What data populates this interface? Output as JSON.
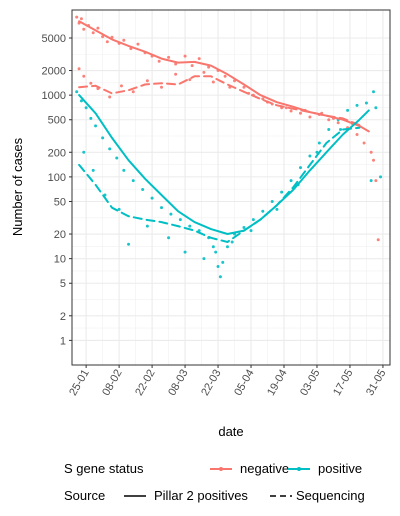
{
  "chart_data": {
    "type": "scatter",
    "xlabel": "date",
    "ylabel": "Number of cases",
    "y_scale": "log",
    "ylim": [
      0.5,
      11000
    ],
    "xlim": [
      "2021-01-19",
      "2021-06-03"
    ],
    "grid": true,
    "legend_position": "bottom",
    "x_ticks": [
      {
        "date": "2021-01-25",
        "label": "25-01"
      },
      {
        "date": "2021-02-08",
        "label": "08-02"
      },
      {
        "date": "2021-02-22",
        "label": "22-02"
      },
      {
        "date": "2021-03-08",
        "label": "08-03"
      },
      {
        "date": "2021-03-22",
        "label": "22-03"
      },
      {
        "date": "2021-04-05",
        "label": "05-04"
      },
      {
        "date": "2021-04-19",
        "label": "19-04"
      },
      {
        "date": "2021-05-03",
        "label": "03-05"
      },
      {
        "date": "2021-05-17",
        "label": "17-05"
      },
      {
        "date": "2021-05-31",
        "label": "31-05"
      }
    ],
    "y_ticks": [
      {
        "value": 1,
        "label": "1"
      },
      {
        "value": 2,
        "label": "2"
      },
      {
        "value": 5,
        "label": "5"
      },
      {
        "value": 10,
        "label": "10"
      },
      {
        "value": 20,
        "label": "20"
      },
      {
        "value": 50,
        "label": "50"
      },
      {
        "value": 100,
        "label": "100"
      },
      {
        "value": 200,
        "label": "200"
      },
      {
        "value": 500,
        "label": "500"
      },
      {
        "value": 1000,
        "label": "1000"
      },
      {
        "value": 2000,
        "label": "2000"
      },
      {
        "value": 5000,
        "label": "5000"
      }
    ],
    "legend": {
      "s_gene_title": "S gene status",
      "s_gene_items": [
        {
          "label": "negative",
          "color": "#F8766D"
        },
        {
          "label": "positive",
          "color": "#00BFC4"
        }
      ],
      "source_title": "Source",
      "source_items": [
        {
          "label": "Pillar 2 positives",
          "dash": "solid"
        },
        {
          "label": "Sequencing",
          "dash": "dashed"
        }
      ]
    },
    "series": [
      {
        "s_gene": "negative",
        "source": "Pillar 2 positives",
        "color": "#F8766D",
        "dash": "solid",
        "points": [
          [
            "2021-01-22",
            8000
          ],
          [
            "2021-01-29",
            6200
          ],
          [
            "2021-02-05",
            4800
          ],
          [
            "2021-02-12",
            4000
          ],
          [
            "2021-02-19",
            3400
          ],
          [
            "2021-02-26",
            2800
          ],
          [
            "2021-03-05",
            2500
          ],
          [
            "2021-03-12",
            2550
          ],
          [
            "2021-03-19",
            2300
          ],
          [
            "2021-03-26",
            1800
          ],
          [
            "2021-04-02",
            1350
          ],
          [
            "2021-04-09",
            1000
          ],
          [
            "2021-04-16",
            820
          ],
          [
            "2021-04-23",
            720
          ],
          [
            "2021-04-30",
            620
          ],
          [
            "2021-05-07",
            560
          ],
          [
            "2021-05-14",
            500
          ],
          [
            "2021-05-21",
            420
          ],
          [
            "2021-05-25",
            360
          ]
        ]
      },
      {
        "s_gene": "negative",
        "source": "Sequencing",
        "color": "#F8766D",
        "dash": "dashed",
        "points": [
          [
            "2021-01-22",
            1250
          ],
          [
            "2021-01-29",
            1300
          ],
          [
            "2021-02-05",
            1050
          ],
          [
            "2021-02-12",
            1150
          ],
          [
            "2021-02-19",
            1350
          ],
          [
            "2021-02-26",
            1400
          ],
          [
            "2021-03-05",
            1350
          ],
          [
            "2021-03-12",
            1700
          ],
          [
            "2021-03-19",
            1700
          ],
          [
            "2021-03-26",
            1350
          ],
          [
            "2021-04-02",
            1100
          ],
          [
            "2021-04-09",
            900
          ],
          [
            "2021-04-16",
            750
          ],
          [
            "2021-04-23",
            680
          ],
          [
            "2021-04-30",
            620
          ],
          [
            "2021-05-07",
            560
          ],
          [
            "2021-05-14",
            520
          ],
          [
            "2021-05-21",
            430
          ]
        ]
      },
      {
        "s_gene": "positive",
        "source": "Pillar 2 positives",
        "color": "#00BFC4",
        "dash": "solid",
        "points": [
          [
            "2021-01-22",
            1000
          ],
          [
            "2021-01-29",
            600
          ],
          [
            "2021-02-05",
            300
          ],
          [
            "2021-02-12",
            160
          ],
          [
            "2021-02-19",
            95
          ],
          [
            "2021-02-26",
            60
          ],
          [
            "2021-03-05",
            38
          ],
          [
            "2021-03-12",
            28
          ],
          [
            "2021-03-19",
            23
          ],
          [
            "2021-03-26",
            20
          ],
          [
            "2021-04-02",
            22
          ],
          [
            "2021-04-09",
            30
          ],
          [
            "2021-04-16",
            45
          ],
          [
            "2021-04-23",
            70
          ],
          [
            "2021-04-30",
            120
          ],
          [
            "2021-05-07",
            200
          ],
          [
            "2021-05-14",
            330
          ],
          [
            "2021-05-21",
            500
          ],
          [
            "2021-05-25",
            650
          ]
        ]
      },
      {
        "s_gene": "positive",
        "source": "Sequencing",
        "color": "#00BFC4",
        "dash": "dashed",
        "points": [
          [
            "2021-01-22",
            140
          ],
          [
            "2021-01-29",
            80
          ],
          [
            "2021-02-05",
            42
          ],
          [
            "2021-02-12",
            33
          ],
          [
            "2021-02-19",
            30
          ],
          [
            "2021-02-26",
            28
          ],
          [
            "2021-03-05",
            25
          ],
          [
            "2021-03-12",
            22
          ],
          [
            "2021-03-19",
            18
          ],
          [
            "2021-03-26",
            16
          ],
          [
            "2021-04-02",
            22
          ],
          [
            "2021-04-09",
            30
          ],
          [
            "2021-04-16",
            45
          ],
          [
            "2021-04-23",
            75
          ],
          [
            "2021-04-30",
            140
          ],
          [
            "2021-05-07",
            260
          ],
          [
            "2021-05-14",
            380
          ],
          [
            "2021-05-21",
            400
          ]
        ]
      }
    ],
    "points": [
      {
        "s_gene": "negative",
        "color": "#F8766D",
        "values": [
          [
            "2021-01-21",
            9000
          ],
          [
            "2021-01-22",
            7600
          ],
          [
            "2021-01-23",
            8600
          ],
          [
            "2021-01-24",
            6400
          ],
          [
            "2021-01-26",
            7100
          ],
          [
            "2021-01-28",
            5800
          ],
          [
            "2021-01-30",
            6600
          ],
          [
            "2021-02-01",
            5200
          ],
          [
            "2021-02-03",
            4500
          ],
          [
            "2021-02-05",
            5100
          ],
          [
            "2021-02-08",
            4300
          ],
          [
            "2021-02-10",
            4700
          ],
          [
            "2021-02-13",
            3700
          ],
          [
            "2021-02-16",
            4200
          ],
          [
            "2021-02-19",
            3300
          ],
          [
            "2021-02-22",
            3000
          ],
          [
            "2021-02-25",
            2600
          ],
          [
            "2021-03-01",
            2900
          ],
          [
            "2021-03-04",
            2400
          ],
          [
            "2021-03-08",
            3000
          ],
          [
            "2021-03-11",
            2300
          ],
          [
            "2021-03-14",
            2800
          ],
          [
            "2021-03-18",
            2200
          ],
          [
            "2021-03-22",
            2000
          ],
          [
            "2021-03-25",
            1700
          ],
          [
            "2021-03-29",
            1500
          ],
          [
            "2021-04-02",
            1250
          ],
          [
            "2021-04-06",
            1000
          ],
          [
            "2021-04-10",
            900
          ],
          [
            "2021-04-14",
            780
          ],
          [
            "2021-04-18",
            700
          ],
          [
            "2021-04-22",
            640
          ],
          [
            "2021-04-26",
            600
          ],
          [
            "2021-04-30",
            540
          ],
          [
            "2021-05-04",
            580
          ],
          [
            "2021-05-08",
            500
          ],
          [
            "2021-05-12",
            460
          ],
          [
            "2021-05-16",
            400
          ],
          [
            "2021-05-20",
            330
          ],
          [
            "2021-05-23",
            260
          ],
          [
            "2021-01-22",
            2100
          ],
          [
            "2021-01-24",
            1700
          ],
          [
            "2021-01-27",
            1400
          ],
          [
            "2021-01-30",
            1200
          ],
          [
            "2021-02-04",
            950
          ],
          [
            "2021-02-09",
            1300
          ],
          [
            "2021-02-14",
            1100
          ],
          [
            "2021-02-20",
            1500
          ],
          [
            "2021-02-26",
            1250
          ],
          [
            "2021-03-04",
            1800
          ],
          [
            "2021-03-10",
            1550
          ],
          [
            "2021-03-16",
            1900
          ],
          [
            "2021-03-20",
            1450
          ],
          [
            "2021-03-27",
            1250
          ],
          [
            "2021-04-04",
            1050
          ],
          [
            "2021-04-12",
            820
          ],
          [
            "2021-04-20",
            700
          ],
          [
            "2021-04-28",
            650
          ],
          [
            "2021-05-05",
            600
          ],
          [
            "2021-05-10",
            520
          ],
          [
            "2021-05-18",
            450
          ],
          [
            "2021-05-26",
            200
          ],
          [
            "2021-05-27",
            160
          ],
          [
            "2021-05-28",
            90
          ],
          [
            "2021-05-29",
            17
          ]
        ]
      },
      {
        "s_gene": "positive",
        "color": "#00BFC4",
        "values": [
          [
            "2021-01-21",
            1100
          ],
          [
            "2021-01-23",
            850
          ],
          [
            "2021-01-25",
            700
          ],
          [
            "2021-01-27",
            520
          ],
          [
            "2021-01-29",
            420
          ],
          [
            "2021-02-01",
            300
          ],
          [
            "2021-02-04",
            220
          ],
          [
            "2021-02-07",
            170
          ],
          [
            "2021-02-10",
            120
          ],
          [
            "2021-02-14",
            90
          ],
          [
            "2021-02-18",
            70
          ],
          [
            "2021-02-22",
            55
          ],
          [
            "2021-02-26",
            42
          ],
          [
            "2021-03-02",
            35
          ],
          [
            "2021-03-06",
            30
          ],
          [
            "2021-03-10",
            25
          ],
          [
            "2021-03-14",
            22
          ],
          [
            "2021-03-18",
            18
          ],
          [
            "2021-03-21",
            12
          ],
          [
            "2021-03-22",
            8
          ],
          [
            "2021-03-23",
            6
          ],
          [
            "2021-03-24",
            9
          ],
          [
            "2021-03-26",
            14
          ],
          [
            "2021-03-29",
            20
          ],
          [
            "2021-04-02",
            24
          ],
          [
            "2021-04-06",
            30
          ],
          [
            "2021-04-10",
            38
          ],
          [
            "2021-04-14",
            50
          ],
          [
            "2021-04-18",
            65
          ],
          [
            "2021-04-22",
            90
          ],
          [
            "2021-04-26",
            130
          ],
          [
            "2021-04-30",
            180
          ],
          [
            "2021-05-04",
            260
          ],
          [
            "2021-05-08",
            380
          ],
          [
            "2021-05-12",
            500
          ],
          [
            "2021-05-16",
            650
          ],
          [
            "2021-05-20",
            750
          ],
          [
            "2021-05-24",
            800
          ],
          [
            "2021-05-27",
            1100
          ],
          [
            "2021-05-28",
            700
          ],
          [
            "2021-05-30",
            100
          ],
          [
            "2021-05-26",
            90
          ],
          [
            "2021-01-24",
            200
          ],
          [
            "2021-01-28",
            120
          ],
          [
            "2021-02-02",
            60
          ],
          [
            "2021-02-08",
            40
          ],
          [
            "2021-02-12",
            15
          ],
          [
            "2021-02-20",
            25
          ],
          [
            "2021-03-01",
            18
          ],
          [
            "2021-03-08",
            12
          ],
          [
            "2021-03-16",
            10
          ],
          [
            "2021-03-20",
            14
          ],
          [
            "2021-03-28",
            16
          ],
          [
            "2021-04-05",
            22
          ],
          [
            "2021-04-16",
            40
          ],
          [
            "2021-04-25",
            80
          ],
          [
            "2021-05-03",
            200
          ],
          [
            "2021-05-13",
            380
          ]
        ]
      }
    ]
  }
}
